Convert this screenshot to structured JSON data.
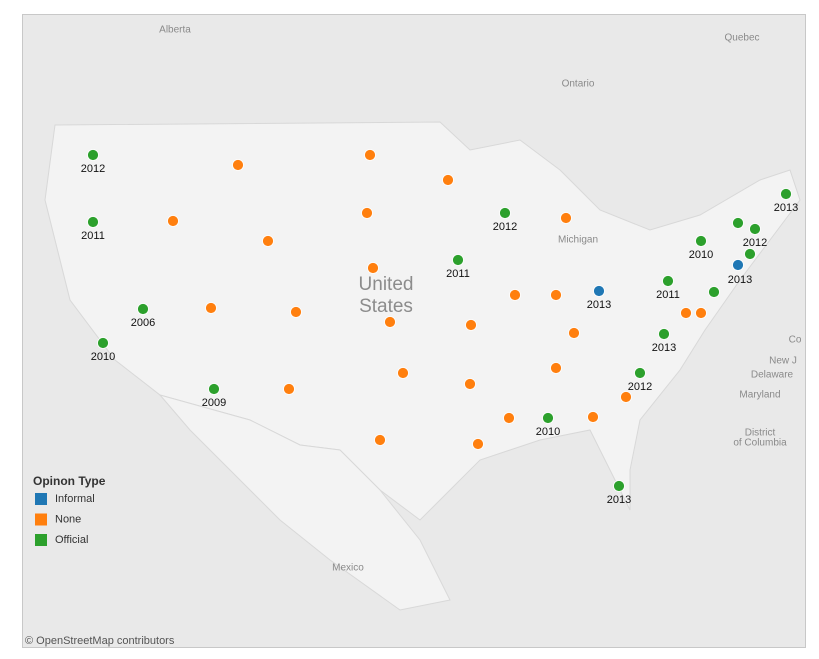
{
  "map": {
    "places": [
      "Alberta",
      "Quebec",
      "Ontario",
      "Michigan",
      "United",
      "States",
      "Mexico",
      "Delaware",
      "Maryland",
      "District",
      "of Columbia",
      "New J",
      "Co"
    ],
    "legend": {
      "title": "Opinon Type",
      "items": [
        {
          "name": "Informal",
          "color": "#1f77b4"
        },
        {
          "name": "None",
          "color": "#ff7f0e"
        },
        {
          "name": "Official",
          "color": "#2ca02c"
        }
      ]
    },
    "points": [
      {
        "type": "Official",
        "year": 2012
      },
      {
        "type": "Official",
        "year": 2011
      },
      {
        "type": "Official",
        "year": 2006
      },
      {
        "type": "Official",
        "year": 2010
      },
      {
        "type": "Official",
        "year": 2009
      },
      {
        "type": "Official",
        "year": 2012
      },
      {
        "type": "Official",
        "year": 2011
      },
      {
        "type": "Official",
        "year": 2010
      },
      {
        "type": "Official",
        "year": 2013
      },
      {
        "type": "Official",
        "year": 2012
      },
      {
        "type": "Official",
        "year": 2011
      },
      {
        "type": "Official",
        "year": 2010
      },
      {
        "type": "Official",
        "year": null
      },
      {
        "type": "Official",
        "year": 2012
      },
      {
        "type": "Official",
        "year": 2013
      },
      {
        "type": "Official",
        "year": null
      },
      {
        "type": "Official",
        "year": null
      },
      {
        "type": "Official",
        "year": 2013
      },
      {
        "type": "Informal",
        "year": 2013
      },
      {
        "type": "Informal",
        "year": 2013
      },
      {
        "type": "None",
        "year": null
      },
      {
        "type": "None",
        "year": null
      },
      {
        "type": "None",
        "year": null
      },
      {
        "type": "None",
        "year": null
      },
      {
        "type": "None",
        "year": null
      },
      {
        "type": "None",
        "year": null
      },
      {
        "type": "None",
        "year": null
      },
      {
        "type": "None",
        "year": null
      },
      {
        "type": "None",
        "year": null
      },
      {
        "type": "None",
        "year": null
      },
      {
        "type": "None",
        "year": null
      },
      {
        "type": "None",
        "year": null
      },
      {
        "type": "None",
        "year": null
      },
      {
        "type": "None",
        "year": null
      },
      {
        "type": "None",
        "year": null
      },
      {
        "type": "None",
        "year": null
      },
      {
        "type": "None",
        "year": null
      },
      {
        "type": "None",
        "year": null
      },
      {
        "type": "None",
        "year": null
      },
      {
        "type": "None",
        "year": null
      },
      {
        "type": "None",
        "year": null
      },
      {
        "type": "None",
        "year": null
      },
      {
        "type": "None",
        "year": null
      },
      {
        "type": "None",
        "year": null
      },
      {
        "type": "None",
        "year": null
      },
      {
        "type": "None",
        "year": null
      }
    ],
    "attribution": "© OpenStreetMap contributors"
  }
}
